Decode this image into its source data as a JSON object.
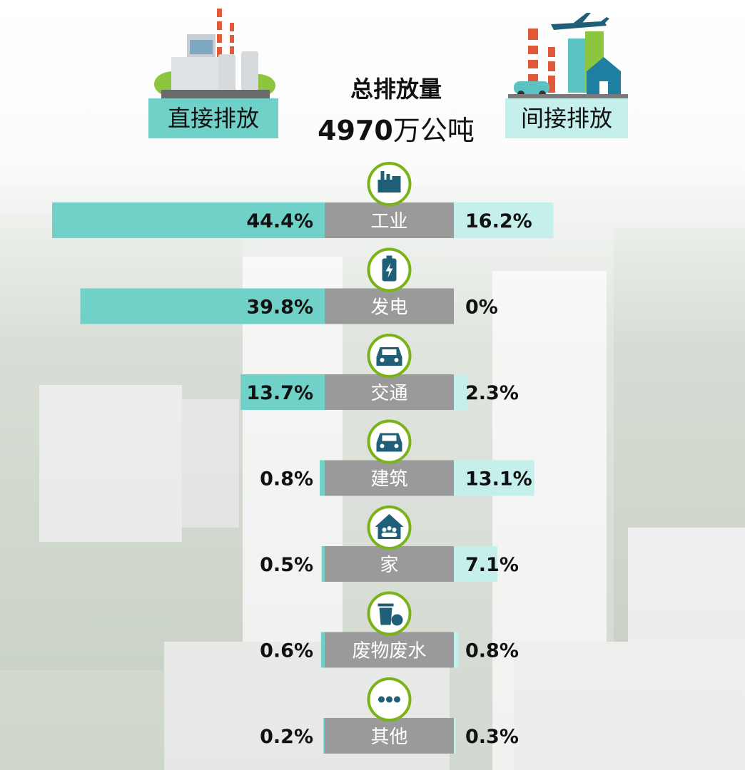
{
  "header": {
    "direct_label": "直接排放",
    "indirect_label": "间接排放",
    "total_title": "总排放量",
    "total_value": "4970",
    "total_unit": "万公吨"
  },
  "colors": {
    "direct": "#6fd1c8",
    "indirect": "#c4efea",
    "category_band": "#9a9a9a",
    "icon_ring": "#7ab317",
    "icon_fill": "#1f5f78"
  },
  "chart_data": {
    "type": "bar",
    "categories": [
      "工业",
      "发电",
      "交通",
      "建筑",
      "家",
      "废物废水",
      "其他"
    ],
    "icons": [
      "factory-icon",
      "battery-icon",
      "car-icon",
      "car-icon",
      "house-family-icon",
      "trash-bag-icon",
      "more-dots-icon"
    ],
    "series": [
      {
        "name": "直接排放",
        "values": [
          44.4,
          39.8,
          13.7,
          0.8,
          0.5,
          0.6,
          0.2
        ],
        "labels": [
          "44.4%",
          "39.8%",
          "13.7%",
          "0.8%",
          "0.5%",
          "0.6%",
          "0.2%"
        ]
      },
      {
        "name": "间接排放",
        "values": [
          16.2,
          0,
          2.3,
          13.1,
          7.1,
          0.8,
          0.3
        ],
        "labels": [
          "16.2%",
          "0%",
          "2.3%",
          "13.1%",
          "7.1%",
          "0.8%",
          "0.3%"
        ]
      }
    ],
    "title": "总排放量",
    "xlim": [
      0,
      45
    ]
  }
}
